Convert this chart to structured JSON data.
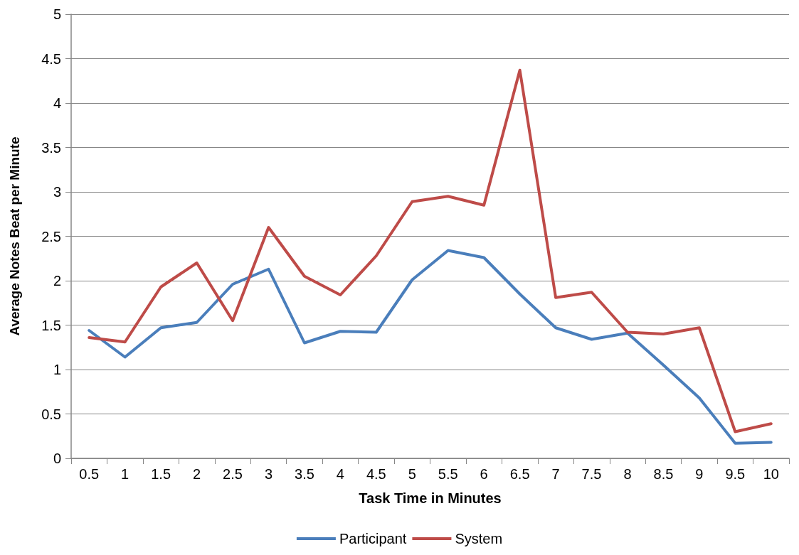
{
  "chart_data": {
    "type": "line",
    "xlabel": "Task Time in Minutes",
    "ylabel": "Average Notes Beat per Minute",
    "categories": [
      "0.5",
      "1",
      "1.5",
      "2",
      "2.5",
      "3",
      "3.5",
      "4",
      "4.5",
      "5",
      "5.5",
      "6",
      "6.5",
      "7",
      "7.5",
      "8",
      "8.5",
      "9",
      "9.5",
      "10"
    ],
    "series": [
      {
        "name": "Participant",
        "color": "#4a7ebb",
        "values": [
          1.44,
          1.14,
          1.47,
          1.53,
          1.96,
          2.13,
          1.3,
          1.43,
          1.42,
          2.01,
          2.34,
          2.26,
          1.85,
          1.47,
          1.34,
          1.41,
          1.05,
          0.68,
          0.17,
          0.18
        ]
      },
      {
        "name": "System",
        "color": "#be4b48",
        "values": [
          1.36,
          1.31,
          1.93,
          2.2,
          1.55,
          2.6,
          2.05,
          1.84,
          2.28,
          2.89,
          2.95,
          2.85,
          4.37,
          1.81,
          1.87,
          1.42,
          1.4,
          1.47,
          0.3,
          0.39
        ]
      }
    ],
    "ylim": [
      0,
      5
    ],
    "yticks": [
      0,
      0.5,
      1,
      1.5,
      2,
      2.5,
      3,
      3.5,
      4,
      4.5,
      5
    ],
    "grid": "y",
    "legend": "bottom",
    "marker": "none",
    "line_style": "solid"
  }
}
